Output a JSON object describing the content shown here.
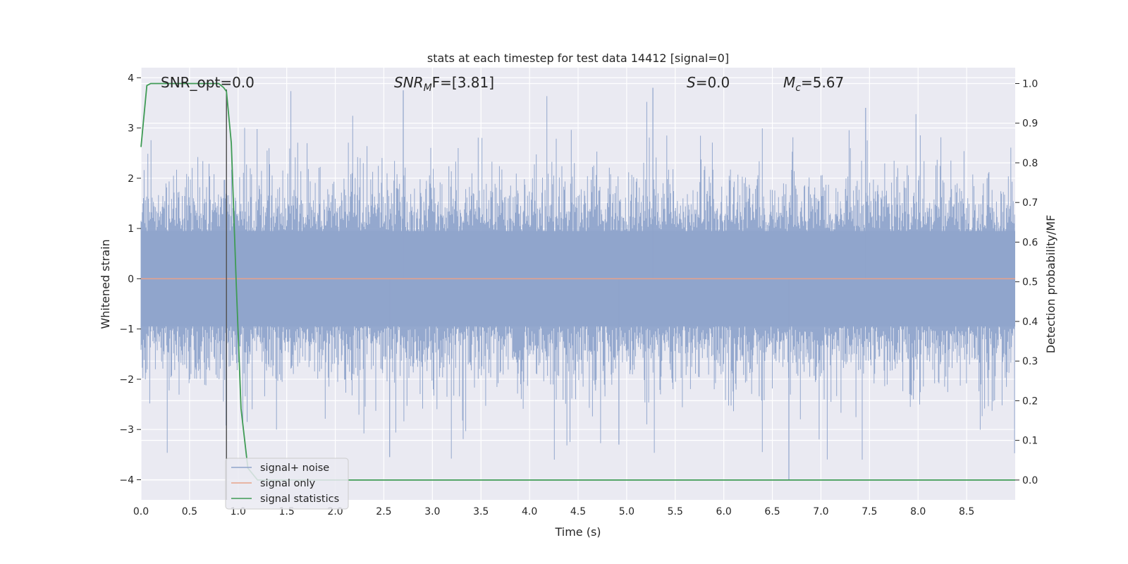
{
  "chart_data": {
    "type": "line",
    "title": "stats at each timestep for test data 14412 [signal=0]",
    "xlabel": "Time (s)",
    "ylabel": "Whitened strain",
    "ylabel_right": "Detection probability/MF",
    "xlim": [
      0.0,
      9.0
    ],
    "ylim": [
      -4.4,
      4.2
    ],
    "ylim_right": [
      -0.05,
      1.04
    ],
    "x_ticks": [
      "0.0",
      "0.5",
      "1.0",
      "1.5",
      "2.0",
      "2.5",
      "3.0",
      "3.5",
      "4.0",
      "4.5",
      "5.0",
      "5.5",
      "6.0",
      "6.5",
      "7.0",
      "7.5",
      "8.0",
      "8.5"
    ],
    "y_ticks": [
      "4",
      "3",
      "2",
      "1",
      "0",
      "−1",
      "−2",
      "−3",
      "−4"
    ],
    "y_ticks_right": [
      "1.0",
      "0.9",
      "0.8",
      "0.7",
      "0.6",
      "0.5",
      "0.4",
      "0.3",
      "0.2",
      "0.1",
      "0.0"
    ],
    "grid": true,
    "legend_position": "lower-left",
    "annotations": {
      "snr_opt": "SNR_opt=0.0",
      "snr_mf_prefix": "SNR",
      "snr_mf_sub": "M",
      "snr_mf_suffix": "F=[3.81]",
      "s_italic": "S",
      "s_rest": "=0.0",
      "mc_italic": "M",
      "mc_sub": "c",
      "mc_rest": "=5.67"
    },
    "marker_line_x": 0.88,
    "series": [
      {
        "name": "signal+ noise",
        "axis": "left",
        "color": "#8fa4cb",
        "description": "whitened noise trace spanning roughly -2.5 to 2.5 with spikes to about +3.8 and -4.0 over 0 to 9 s"
      },
      {
        "name": "signal only",
        "axis": "left",
        "color": "#e8a38a",
        "x": [
          0.0,
          9.0
        ],
        "y": [
          0.0,
          0.0
        ]
      },
      {
        "name": "signal statistics",
        "axis": "right",
        "color": "#3f9b55",
        "x": [
          0.0,
          0.06,
          0.1,
          0.2,
          0.3,
          0.4,
          0.5,
          0.6,
          0.7,
          0.8,
          0.85,
          0.88,
          0.93,
          0.98,
          1.03,
          1.1,
          1.2,
          1.5,
          2.0,
          3.0,
          4.0,
          5.0,
          6.0,
          7.0,
          8.0,
          9.0
        ],
        "y": [
          0.84,
          0.995,
          1.0,
          1.0,
          1.0,
          1.0,
          1.0,
          1.0,
          1.0,
          1.0,
          0.99,
          0.98,
          0.85,
          0.5,
          0.18,
          0.03,
          0.0,
          0.0,
          0.0,
          0.0,
          0.0,
          0.0,
          0.0,
          0.0,
          0.0,
          0.0
        ]
      }
    ]
  }
}
